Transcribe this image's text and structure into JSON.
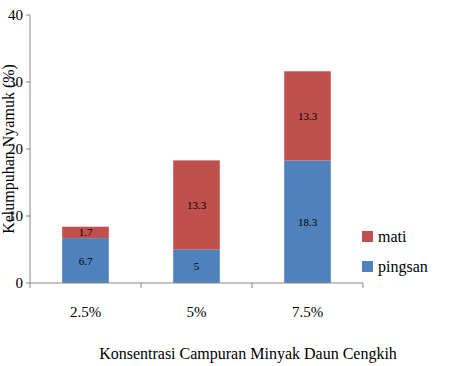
{
  "chart_data": {
    "type": "bar",
    "stacked": true,
    "data_labels": true,
    "legend": "right",
    "x_label": "Konsentrasi Campuran Minyak Daun Cengkih",
    "y_label": "Kelumpuhan Nyamuk (%)",
    "categories": [
      "2.5%",
      "5%",
      "7.5%"
    ],
    "series": [
      {
        "name": "pingsan",
        "color": "#4f81bd",
        "values": [
          6.7,
          5,
          18.3
        ]
      },
      {
        "name": "mati",
        "color": "#c0504d",
        "values": [
          1.7,
          13.3,
          13.3
        ]
      }
    ],
    "ylim": [
      0,
      40
    ],
    "yticks": [
      0,
      10,
      20,
      30,
      40
    ],
    "grid": false
  }
}
